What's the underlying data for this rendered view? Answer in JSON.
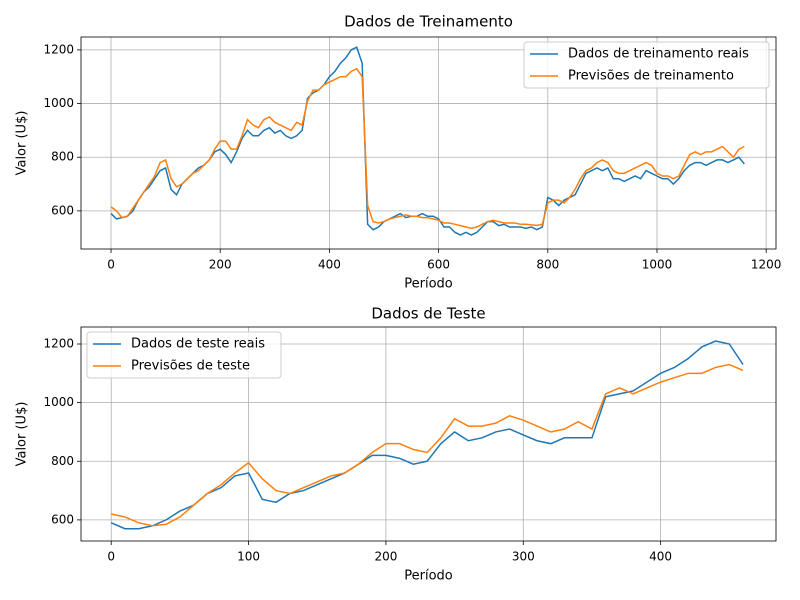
{
  "chart_data": [
    {
      "type": "line",
      "title": "Dados de Treinamento",
      "x_label": "Período",
      "y_label": "Valor (U$)",
      "x": [
        0,
        10,
        20,
        30,
        40,
        50,
        60,
        70,
        80,
        90,
        100,
        110,
        120,
        130,
        140,
        150,
        160,
        170,
        180,
        190,
        200,
        210,
        220,
        230,
        240,
        250,
        260,
        270,
        280,
        290,
        300,
        310,
        320,
        330,
        340,
        350,
        360,
        370,
        380,
        390,
        400,
        410,
        420,
        430,
        440,
        450,
        460,
        470,
        480,
        490,
        500,
        510,
        520,
        530,
        540,
        550,
        560,
        570,
        580,
        590,
        600,
        610,
        620,
        630,
        640,
        650,
        660,
        670,
        680,
        690,
        700,
        710,
        720,
        730,
        740,
        750,
        760,
        770,
        780,
        790,
        800,
        810,
        820,
        830,
        840,
        850,
        860,
        870,
        880,
        890,
        900,
        910,
        920,
        930,
        940,
        950,
        960,
        970,
        980,
        990,
        1000,
        1010,
        1020,
        1030,
        1040,
        1050,
        1060,
        1070,
        1080,
        1090,
        1100,
        1110,
        1120,
        1130,
        1140,
        1150,
        1160
      ],
      "series": [
        {
          "name": "Dados de treinamento reais",
          "color": "#1f77b4",
          "values": [
            590,
            570,
            575,
            580,
            600,
            640,
            670,
            690,
            720,
            750,
            760,
            680,
            660,
            700,
            720,
            740,
            760,
            770,
            790,
            820,
            830,
            810,
            780,
            820,
            870,
            900,
            880,
            880,
            900,
            910,
            890,
            900,
            880,
            870,
            880,
            900,
            1020,
            1040,
            1050,
            1070,
            1100,
            1120,
            1150,
            1170,
            1200,
            1210,
            1150,
            550,
            530,
            540,
            560,
            570,
            580,
            590,
            575,
            580,
            580,
            590,
            580,
            580,
            570,
            540,
            540,
            520,
            510,
            520,
            510,
            520,
            540,
            560,
            560,
            545,
            550,
            540,
            540,
            540,
            535,
            540,
            530,
            540,
            650,
            640,
            620,
            640,
            650,
            660,
            700,
            740,
            750,
            760,
            750,
            760,
            720,
            720,
            710,
            720,
            730,
            720,
            750,
            740,
            730,
            720,
            720,
            700,
            720,
            750,
            770,
            780,
            780,
            770,
            780,
            790,
            790,
            780,
            790,
            800,
            775
          ]
        },
        {
          "name": "Previsões de treinamento",
          "color": "#ff7f0e",
          "values": [
            615,
            600,
            575,
            580,
            610,
            640,
            670,
            700,
            730,
            780,
            790,
            720,
            690,
            700,
            720,
            740,
            750,
            770,
            790,
            830,
            860,
            860,
            830,
            830,
            880,
            940,
            920,
            910,
            940,
            950,
            930,
            920,
            910,
            900,
            930,
            920,
            1010,
            1050,
            1050,
            1070,
            1080,
            1090,
            1100,
            1100,
            1120,
            1130,
            1100,
            620,
            560,
            555,
            560,
            570,
            575,
            580,
            585,
            580,
            580,
            575,
            575,
            570,
            565,
            555,
            555,
            550,
            545,
            540,
            535,
            540,
            550,
            560,
            565,
            560,
            555,
            555,
            555,
            550,
            550,
            548,
            546,
            550,
            630,
            640,
            640,
            630,
            650,
            680,
            720,
            750,
            760,
            780,
            790,
            780,
            750,
            740,
            740,
            750,
            760,
            770,
            780,
            770,
            740,
            730,
            730,
            720,
            730,
            770,
            810,
            820,
            810,
            820,
            820,
            830,
            840,
            820,
            800,
            830,
            840
          ]
        }
      ],
      "xlim": [
        -55,
        1218
      ],
      "ylim": [
        458,
        1248
      ],
      "xticks": [
        0,
        200,
        400,
        600,
        800,
        1000,
        1200
      ],
      "yticks": [
        600,
        800,
        1000,
        1200
      ],
      "grid": true,
      "legend": "upper right"
    },
    {
      "type": "line",
      "title": "Dados de Teste",
      "x_label": "Período",
      "y_label": "Valor (U$)",
      "x": [
        0,
        10,
        20,
        30,
        40,
        50,
        60,
        70,
        80,
        90,
        100,
        110,
        120,
        130,
        140,
        150,
        160,
        170,
        180,
        190,
        200,
        210,
        220,
        230,
        240,
        250,
        260,
        270,
        280,
        290,
        300,
        310,
        320,
        330,
        340,
        350,
        360,
        370,
        380,
        390,
        400,
        410,
        420,
        430,
        440,
        450,
        460
      ],
      "series": [
        {
          "name": "Dados de teste reais",
          "color": "#1f77b4",
          "values": [
            590,
            570,
            570,
            580,
            600,
            630,
            650,
            690,
            710,
            750,
            760,
            670,
            660,
            690,
            700,
            720,
            740,
            760,
            790,
            820,
            820,
            810,
            790,
            800,
            860,
            900,
            870,
            880,
            900,
            910,
            890,
            870,
            860,
            880,
            880,
            880,
            1020,
            1030,
            1040,
            1070,
            1100,
            1120,
            1150,
            1190,
            1210,
            1200,
            1130
          ]
        },
        {
          "name": "Previsões de teste",
          "color": "#ff7f0e",
          "values": [
            620,
            610,
            590,
            580,
            585,
            610,
            650,
            690,
            720,
            760,
            795,
            740,
            700,
            690,
            710,
            730,
            750,
            760,
            790,
            830,
            860,
            860,
            840,
            830,
            880,
            945,
            920,
            920,
            930,
            955,
            940,
            920,
            900,
            910,
            935,
            910,
            1030,
            1050,
            1030,
            1050,
            1070,
            1085,
            1100,
            1100,
            1120,
            1130,
            1110
          ]
        }
      ],
      "xlim": [
        -22,
        484
      ],
      "ylim": [
        528,
        1258
      ],
      "xticks": [
        0,
        100,
        200,
        300,
        400
      ],
      "yticks": [
        600,
        800,
        1000,
        1200
      ],
      "grid": true,
      "legend": "upper left"
    }
  ]
}
